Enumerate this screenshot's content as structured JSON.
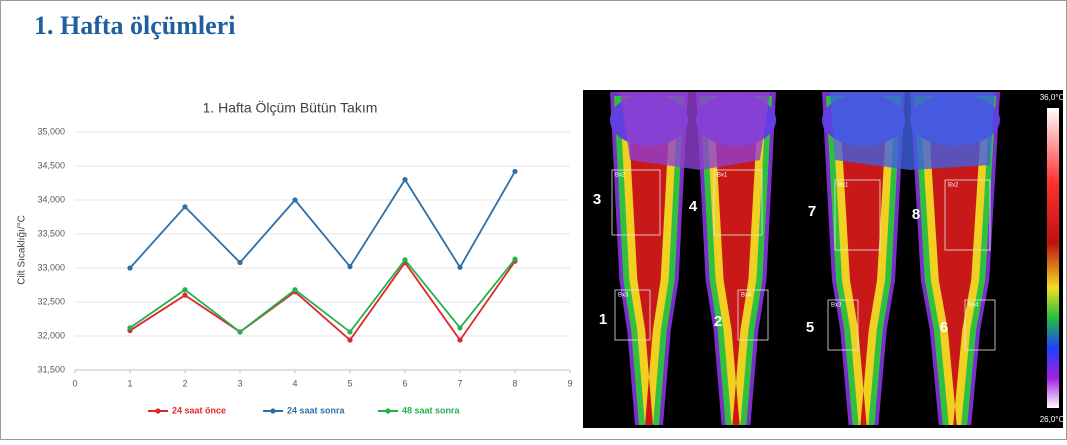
{
  "header": {
    "title": "1. Hafta ölçümleri"
  },
  "chart_data": {
    "type": "line",
    "title": "1. Hafta Ölçüm Bütün Takım",
    "y_label": "Cilt Sıcaklığı/°C",
    "x": [
      1,
      2,
      3,
      4,
      5,
      6,
      7,
      8
    ],
    "xlim": [
      0,
      9
    ],
    "xticks": [
      0,
      1,
      2,
      3,
      4,
      5,
      6,
      7,
      8,
      9
    ],
    "ylim": [
      31500,
      35000
    ],
    "yticks": [
      {
        "value": 31500,
        "label": "31,500"
      },
      {
        "value": 32000,
        "label": "32,000"
      },
      {
        "value": 32500,
        "label": "32,500"
      },
      {
        "value": 33000,
        "label": "33,000"
      },
      {
        "value": 33500,
        "label": "33,500"
      },
      {
        "value": 34000,
        "label": "34,000"
      },
      {
        "value": 34500,
        "label": "34,500"
      },
      {
        "value": 35000,
        "label": "35,000"
      }
    ],
    "grid": true,
    "series": [
      {
        "name": "24 saat önce",
        "color": "#e0262b",
        "values": [
          32080,
          32600,
          32060,
          32650,
          31940,
          33080,
          31940,
          33100
        ]
      },
      {
        "name": "24 saat sonra",
        "color": "#2f6fa7",
        "values": [
          33000,
          33900,
          33080,
          34000,
          33020,
          34300,
          33010,
          34420
        ]
      },
      {
        "name": "48 saat sonra",
        "color": "#22b14c",
        "values": [
          32120,
          32680,
          32060,
          32680,
          32060,
          33120,
          32120,
          33130
        ]
      }
    ]
  },
  "thermal_image": {
    "scale_max": "36,0°C",
    "scale_min": "26,0°C",
    "regions": [
      {
        "number": "3",
        "box": "Bx2"
      },
      {
        "number": "4",
        "box": "Bx1"
      },
      {
        "number": "1",
        "box": "Bx3"
      },
      {
        "number": "2",
        "box": "Bx4"
      },
      {
        "number": "7",
        "box": "Bx1"
      },
      {
        "number": "8",
        "box": "Bx2"
      },
      {
        "number": "5",
        "box": "Bx3"
      },
      {
        "number": "6",
        "box": "Bx4"
      }
    ]
  }
}
